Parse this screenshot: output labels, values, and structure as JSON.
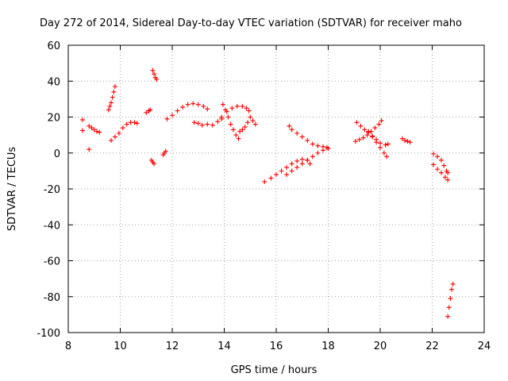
{
  "chart_data": {
    "type": "scatter",
    "title": "Day 272 of 2014, Sidereal Day-to-day VTEC variation (SDTVAR) for receiver maho",
    "xlabel": "GPS time / hours",
    "ylabel": "SDTVAR / TECUs",
    "xlim": [
      8,
      24
    ],
    "ylim": [
      -100,
      60
    ],
    "xticks": [
      8,
      10,
      12,
      14,
      16,
      18,
      20,
      22,
      24
    ],
    "yticks": [
      60,
      40,
      20,
      0,
      -20,
      -40,
      -60,
      -80,
      -100
    ],
    "grid": true,
    "marker": "+",
    "color": "#ff0000",
    "series": [
      {
        "name": "s1",
        "points": [
          [
            8.55,
            18.5
          ],
          [
            8.55,
            12.5
          ],
          [
            8.8,
            2
          ]
        ]
      },
      {
        "name": "s2",
        "points": [
          [
            8.8,
            15
          ],
          [
            8.9,
            14
          ],
          [
            9.0,
            13
          ],
          [
            9.1,
            12
          ],
          [
            9.2,
            11.5
          ]
        ]
      },
      {
        "name": "s3",
        "points": [
          [
            9.55,
            24
          ],
          [
            9.6,
            26
          ],
          [
            9.65,
            28
          ],
          [
            9.7,
            31
          ],
          [
            9.75,
            34
          ],
          [
            9.8,
            37
          ]
        ]
      },
      {
        "name": "s4",
        "points": [
          [
            9.65,
            7
          ],
          [
            9.8,
            9
          ],
          [
            9.95,
            11
          ],
          [
            10.1,
            14
          ],
          [
            10.25,
            16
          ],
          [
            10.4,
            17
          ],
          [
            10.55,
            17
          ],
          [
            10.65,
            16.5
          ]
        ]
      },
      {
        "name": "s5",
        "points": [
          [
            11.0,
            22.5
          ],
          [
            11.1,
            23.5
          ],
          [
            11.15,
            24
          ]
        ]
      },
      {
        "name": "s6",
        "points": [
          [
            11.25,
            46
          ],
          [
            11.3,
            44
          ],
          [
            11.35,
            42
          ],
          [
            11.4,
            41
          ]
        ]
      },
      {
        "name": "s7",
        "points": [
          [
            11.2,
            -4
          ],
          [
            11.25,
            -5
          ],
          [
            11.3,
            -6
          ]
        ]
      },
      {
        "name": "s8",
        "points": [
          [
            11.65,
            -1
          ],
          [
            11.7,
            0
          ],
          [
            11.75,
            1
          ]
        ]
      },
      {
        "name": "s9",
        "points": [
          [
            11.8,
            19
          ],
          [
            12.0,
            21
          ],
          [
            12.2,
            23.5
          ],
          [
            12.4,
            25.5
          ],
          [
            12.6,
            27
          ],
          [
            12.8,
            27.5
          ],
          [
            13.0,
            27
          ],
          [
            13.2,
            26
          ],
          [
            13.35,
            24.5
          ]
        ]
      },
      {
        "name": "s10",
        "points": [
          [
            12.85,
            17
          ],
          [
            13.0,
            16.5
          ],
          [
            13.15,
            15.5
          ],
          [
            13.35,
            16
          ],
          [
            13.55,
            15.5
          ],
          [
            13.75,
            17.5
          ],
          [
            13.9,
            19
          ]
        ]
      },
      {
        "name": "s11",
        "points": [
          [
            13.9,
            20
          ],
          [
            14.1,
            23
          ],
          [
            14.3,
            25
          ],
          [
            14.5,
            26
          ],
          [
            14.7,
            26
          ],
          [
            14.85,
            25
          ],
          [
            14.95,
            23.5
          ]
        ]
      },
      {
        "name": "s12",
        "points": [
          [
            13.95,
            27
          ],
          [
            14.05,
            24
          ],
          [
            14.15,
            20
          ],
          [
            14.25,
            16
          ],
          [
            14.35,
            13
          ],
          [
            14.45,
            10
          ],
          [
            14.55,
            8
          ]
        ]
      },
      {
        "name": "s13",
        "points": [
          [
            14.6,
            12
          ],
          [
            14.7,
            13
          ],
          [
            14.8,
            14.5
          ],
          [
            14.9,
            17
          ],
          [
            15.0,
            20
          ],
          [
            15.1,
            18
          ],
          [
            15.2,
            16
          ]
        ]
      },
      {
        "name": "s14",
        "points": [
          [
            15.55,
            -16
          ],
          [
            15.8,
            -14
          ],
          [
            16.0,
            -12
          ],
          [
            16.2,
            -10
          ],
          [
            16.4,
            -8
          ],
          [
            16.6,
            -6
          ],
          [
            16.8,
            -4.5
          ],
          [
            17.0,
            -3.5
          ],
          [
            17.2,
            -4
          ],
          [
            17.3,
            -6
          ]
        ]
      },
      {
        "name": "s15",
        "points": [
          [
            16.4,
            -12
          ],
          [
            16.6,
            -10
          ],
          [
            16.8,
            -8
          ],
          [
            17.0,
            -6
          ],
          [
            17.2,
            -4
          ],
          [
            17.4,
            -2
          ],
          [
            17.6,
            0
          ],
          [
            17.8,
            1.5
          ],
          [
            18.0,
            2.5
          ]
        ]
      },
      {
        "name": "s16",
        "points": [
          [
            16.5,
            15
          ],
          [
            16.6,
            13
          ],
          [
            16.8,
            11
          ],
          [
            17.0,
            9
          ],
          [
            17.2,
            7
          ],
          [
            17.4,
            5
          ],
          [
            17.6,
            4
          ],
          [
            17.8,
            3.5
          ],
          [
            17.95,
            3
          ]
        ]
      },
      {
        "name": "s17",
        "points": [
          [
            19.05,
            6.5
          ],
          [
            19.2,
            7.5
          ],
          [
            19.35,
            8.5
          ],
          [
            19.5,
            10
          ],
          [
            19.65,
            12
          ],
          [
            19.8,
            14
          ],
          [
            19.95,
            16
          ],
          [
            20.05,
            18
          ]
        ]
      },
      {
        "name": "s18",
        "points": [
          [
            19.1,
            17
          ],
          [
            19.25,
            15
          ],
          [
            19.4,
            13
          ],
          [
            19.55,
            11.5
          ],
          [
            19.7,
            9.5
          ],
          [
            19.85,
            7.5
          ],
          [
            20.0,
            5.5
          ],
          [
            20.2,
            4.5
          ],
          [
            20.3,
            5
          ]
        ]
      },
      {
        "name": "s19",
        "points": [
          [
            19.55,
            12
          ],
          [
            19.7,
            9
          ],
          [
            19.85,
            6
          ],
          [
            20.0,
            3
          ],
          [
            20.15,
            0
          ],
          [
            20.25,
            -2
          ]
        ]
      },
      {
        "name": "s20",
        "points": [
          [
            20.85,
            8
          ],
          [
            20.95,
            7
          ],
          [
            21.05,
            6.5
          ],
          [
            21.15,
            6
          ]
        ]
      },
      {
        "name": "s21",
        "points": [
          [
            22.05,
            -0.5
          ],
          [
            22.2,
            -2
          ],
          [
            22.35,
            -4
          ],
          [
            22.45,
            -7
          ],
          [
            22.55,
            -10
          ],
          [
            22.6,
            -11
          ]
        ]
      },
      {
        "name": "s22",
        "points": [
          [
            22.05,
            -6.5
          ],
          [
            22.2,
            -9
          ],
          [
            22.35,
            -11
          ],
          [
            22.5,
            -13.5
          ],
          [
            22.6,
            -15
          ]
        ]
      },
      {
        "name": "s23",
        "points": [
          [
            22.6,
            -91
          ],
          [
            22.65,
            -86
          ],
          [
            22.7,
            -81
          ],
          [
            22.75,
            -76
          ],
          [
            22.8,
            -73
          ]
        ]
      }
    ]
  }
}
